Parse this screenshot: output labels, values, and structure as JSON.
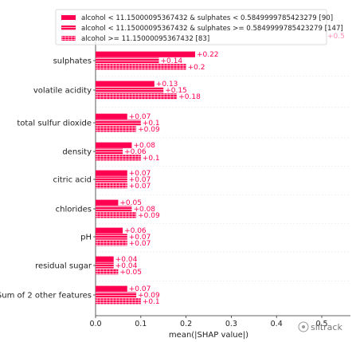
{
  "chart_data": {
    "type": "bar",
    "orientation": "horizontal",
    "xlabel": "mean(|SHAP value|)",
    "xlim": [
      0,
      0.5
    ],
    "xticks": [
      "0.0",
      "0.1",
      "0.2",
      "0.3",
      "0.4",
      "0.5"
    ],
    "grid": false,
    "legend_position": "top",
    "categories": [
      "sulphates",
      "volatile acidity",
      "total sulfur dioxide",
      "density",
      "citric acid",
      "chlorides",
      "pH",
      "residual sugar",
      "Sum of 2 other features"
    ],
    "series": [
      {
        "name": "alcohol < 11.15000095367432 & sulphates < 0.5849999785423279 [90]",
        "pattern": "solid",
        "color": "#ff0051",
        "values": [
          0.22,
          0.13,
          0.07,
          0.08,
          0.07,
          0.05,
          0.06,
          0.04,
          0.07
        ],
        "labels": [
          "+0.22",
          "+0.13",
          "+0.07",
          "+0.08",
          "+0.07",
          "+0.05",
          "+0.06",
          "+0.04",
          "+0.07"
        ]
      },
      {
        "name": "alcohol < 11.15000095367432 & sulphates >= 0.5849999785423279 [147]",
        "pattern": "hatch",
        "color": "#ff0051",
        "values": [
          0.14,
          0.15,
          0.1,
          0.06,
          0.07,
          0.08,
          0.07,
          0.04,
          0.09
        ],
        "labels": [
          "+0.14",
          "+0.15",
          "+0.1",
          "+0.06",
          "+0.07",
          "+0.08",
          "+0.07",
          "+0.04",
          "+0.09"
        ]
      },
      {
        "name": "alcohol >= 11.15000095367432 [83]",
        "pattern": "grid",
        "color": "#ff0051",
        "values": [
          0.2,
          0.18,
          0.09,
          0.1,
          0.07,
          0.09,
          0.07,
          0.05,
          0.1
        ],
        "labels": [
          "+0.2",
          "+0.18",
          "+0.09",
          "+0.1",
          "+0.07",
          "+0.09",
          "+0.07",
          "+0.05",
          "+0.1"
        ]
      }
    ],
    "legend_overlap_value_label": "+0.5"
  },
  "watermark": {
    "text": "slitrack"
  }
}
